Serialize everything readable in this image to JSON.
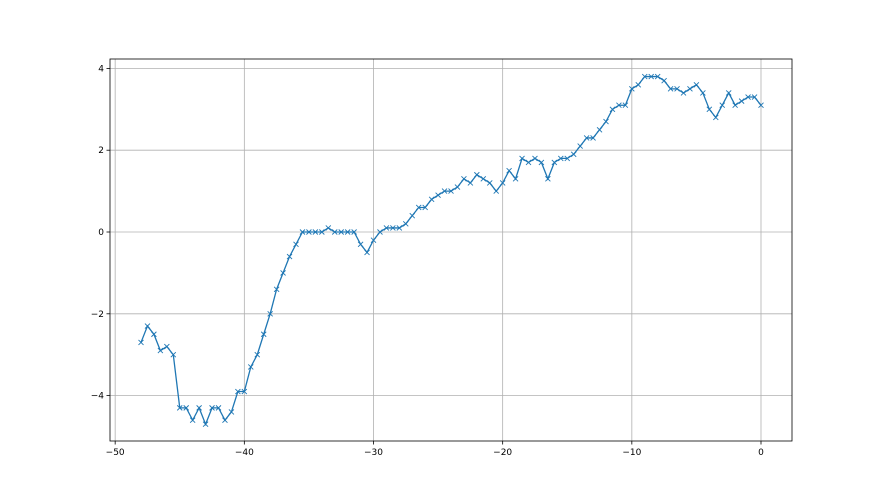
{
  "chart_data": {
    "type": "line",
    "title": "",
    "xlabel": "",
    "ylabel": "",
    "xlim": [
      -50.4,
      2.4
    ],
    "ylim": [
      -5.11,
      4.23
    ],
    "xticks": [
      -50,
      -40,
      -30,
      -20,
      -10,
      0
    ],
    "yticks": [
      -4,
      -2,
      0,
      2,
      4
    ],
    "xtick_labels": [
      "−50",
      "−40",
      "−30",
      "−20",
      "−10",
      "0"
    ],
    "ytick_labels": [
      "−4",
      "−2",
      "0",
      "2",
      "4"
    ],
    "grid": true,
    "marker": "x",
    "line_color": "#1f77b4",
    "x_start": -48,
    "x_step": 0.5,
    "y": [
      -2.7,
      -2.3,
      -2.5,
      -2.9,
      -2.8,
      -3.0,
      -4.3,
      -4.3,
      -4.6,
      -4.3,
      -4.7,
      -4.3,
      -4.3,
      -4.6,
      -4.4,
      -3.9,
      -3.9,
      -3.3,
      -3.0,
      -2.5,
      -2.0,
      -1.4,
      -1.0,
      -0.6,
      -0.3,
      0,
      0,
      0,
      0,
      0.1,
      0,
      0,
      0,
      0,
      -0.3,
      -0.5,
      -0.2,
      0,
      0.1,
      0.1,
      0.1,
      0.2,
      0.4,
      0.6,
      0.6,
      0.8,
      0.9,
      1.0,
      1.0,
      1.1,
      1.3,
      1.2,
      1.4,
      1.3,
      1.2,
      1.0,
      1.2,
      1.5,
      1.3,
      1.8,
      1.7,
      1.8,
      1.7,
      1.3,
      1.7,
      1.8,
      1.8,
      1.9,
      2.1,
      2.3,
      2.3,
      2.5,
      2.7,
      3.0,
      3.1,
      3.1,
      3.5,
      3.6,
      3.8,
      3.8,
      3.8,
      3.7,
      3.5,
      3.5,
      3.4,
      3.5,
      3.6,
      3.4,
      3.0,
      2.8,
      3.1,
      3.4,
      3.1,
      3.2,
      3.3,
      3.3,
      3.1
    ]
  }
}
